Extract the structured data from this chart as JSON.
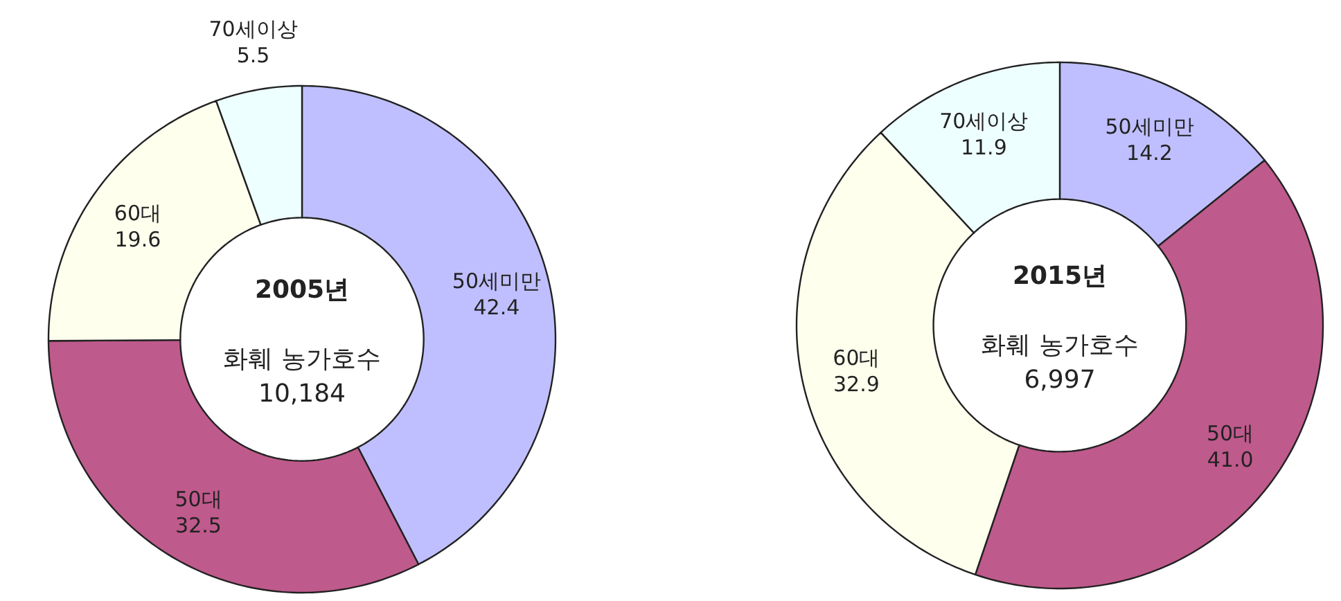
{
  "chart_data": [
    {
      "type": "donut",
      "title": "2005년",
      "annotations": [
        "화훼 농가호수",
        "10,184"
      ],
      "categories": [
        "50세미만",
        "50대",
        "60대",
        "70세이상"
      ],
      "values": [
        42.4,
        32.5,
        19.6,
        5.5
      ],
      "value_labels": [
        "42.4",
        "32.5",
        "19.6",
        "5.5"
      ],
      "colors": [
        "#bfbfff",
        "#bf5a8c",
        "#ffffee",
        "#eeffff"
      ]
    },
    {
      "type": "donut",
      "title": "2015년",
      "annotations": [
        "화훼 농가호수",
        "6,997"
      ],
      "categories": [
        "50세미만",
        "50대",
        "60대",
        "70세이상"
      ],
      "values": [
        14.2,
        41.0,
        32.9,
        11.9
      ],
      "value_labels": [
        "14.2",
        "41.0",
        "32.9",
        "11.9"
      ],
      "colors": [
        "#bfbfff",
        "#bf5a8c",
        "#ffffee",
        "#eeffff"
      ]
    }
  ]
}
